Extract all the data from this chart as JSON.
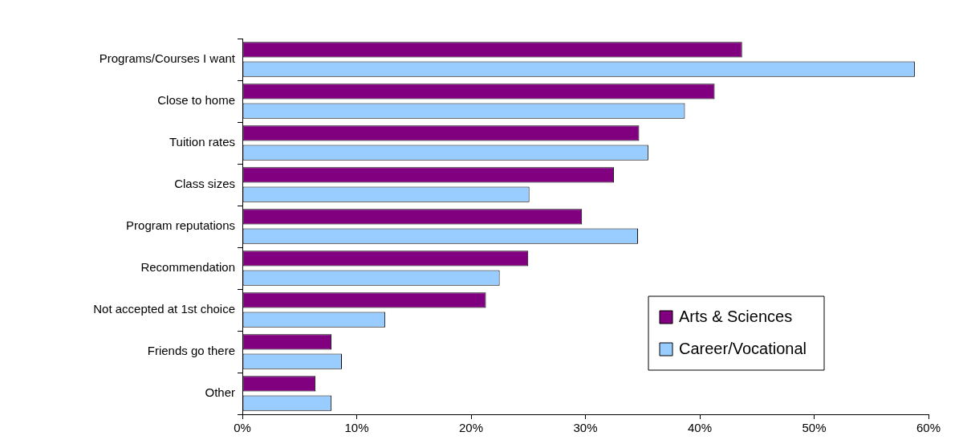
{
  "chart_data": {
    "type": "bar",
    "orientation": "horizontal",
    "categories": [
      "Programs/Courses I want",
      "Close to home",
      "Tuition rates",
      "Class sizes",
      "Program reputations",
      "Recommendation",
      "Not accepted at 1st choice",
      "Friends go there",
      "Other"
    ],
    "series": [
      {
        "name": "Arts & Sciences",
        "color": "#800080",
        "values": [
          43.7,
          41.3,
          34.7,
          32.5,
          29.7,
          25.0,
          21.3,
          7.8,
          6.4
        ]
      },
      {
        "name": "Career/Vocational",
        "color": "#99ccff",
        "values": [
          58.8,
          38.7,
          35.5,
          25.1,
          34.6,
          22.5,
          12.5,
          8.7,
          7.8
        ]
      }
    ],
    "xlim": [
      0,
      60
    ],
    "xticks": [
      {
        "value": 0,
        "label": "0%"
      },
      {
        "value": 10,
        "label": "10%"
      },
      {
        "value": 20,
        "label": "20%"
      },
      {
        "value": 30,
        "label": "30%"
      },
      {
        "value": 40,
        "label": "40%"
      },
      {
        "value": 50,
        "label": "50%"
      },
      {
        "value": 60,
        "label": "60%"
      }
    ],
    "grid": false,
    "legend": "bottom right"
  }
}
